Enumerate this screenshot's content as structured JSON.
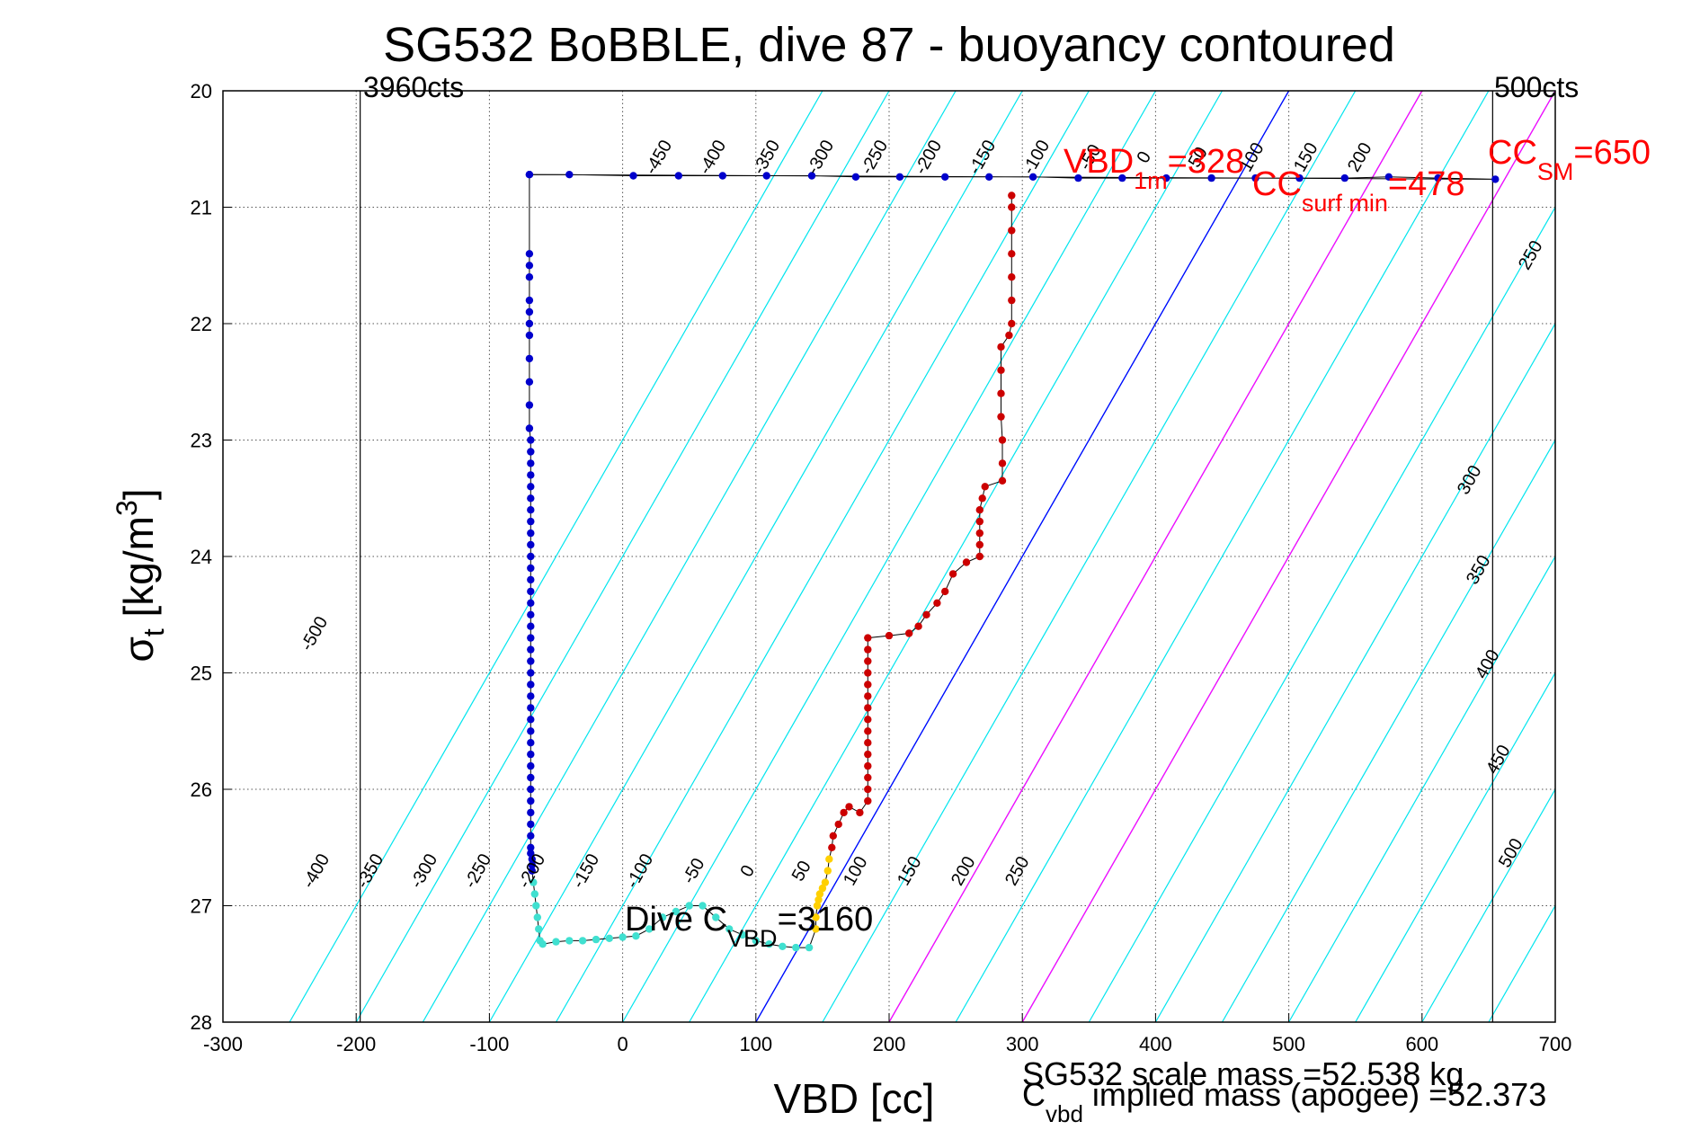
{
  "chart_data": {
    "type": "scatter",
    "title": "SG532 BoBBLE, dive 87 - buoyancy contoured",
    "xlabel": "VBD [cc]",
    "ylabel": "σ_t [kg/m³]",
    "ylabel_main": "σ",
    "ylabel_sub": "t",
    "ylabel_rest": " [kg/m",
    "ylabel_sup": "3",
    "ylabel_close": "]",
    "xlim": [
      -300,
      700
    ],
    "ylim": [
      20,
      28
    ],
    "y_reversed": true,
    "grid": true,
    "xticks": [
      "-300",
      "-200",
      "-100",
      "0",
      "100",
      "200",
      "300",
      "400",
      "500",
      "600",
      "700"
    ],
    "yticks": [
      "20",
      "21",
      "22",
      "23",
      "24",
      "25",
      "26",
      "27",
      "28"
    ],
    "vertical_lines": [
      {
        "x": -197,
        "label": "3960cts"
      },
      {
        "x": 653,
        "label": "500cts"
      }
    ],
    "contours": {
      "top_labels": [
        "-450",
        "-400",
        "-350",
        "-300",
        "-250",
        "-200",
        "-150",
        "-100",
        "-50",
        "0",
        "50",
        "100",
        "150",
        "200"
      ],
      "bottom_labels": [
        "-400",
        "-350",
        "-300",
        "-250",
        "-200",
        "-150",
        "-100",
        "-50",
        "0",
        "50",
        "100",
        "150",
        "200",
        "250"
      ],
      "left_labels": [
        "-500"
      ],
      "right_labels": [
        "250",
        "300",
        "350",
        "400",
        "450",
        "500"
      ]
    },
    "reference_lines": [
      {
        "name": "VBD_1m",
        "color": "#0000ff",
        "points": [
          [
            100,
            28
          ],
          [
            500,
            20
          ]
        ]
      },
      {
        "name": "CC_surf min",
        "color": "#ff00ff",
        "points": [
          [
            200,
            28
          ],
          [
            600,
            20
          ]
        ]
      },
      {
        "name": "CC_SM",
        "color": "#ff00ff",
        "points": [
          [
            300,
            28
          ],
          [
            700,
            20
          ]
        ]
      }
    ],
    "annotations": {
      "vbd1m": {
        "main": "VBD",
        "sub": "1m",
        "value": "=328"
      },
      "ccsurf": {
        "main": "CC",
        "sub": "surf min",
        "value": "=478"
      },
      "ccsm": {
        "main": "CC",
        "sub": "SM",
        "value": "=650"
      },
      "dive_c": {
        "main": "Dive C",
        "sub": "VBD",
        "value": "=3160"
      },
      "scale_mass": "SG532 scale mass =52.538 kg",
      "implied_mass": {
        "main": "C",
        "sub": "vbd",
        "rest": " implied mass (apogee) =52.373"
      }
    },
    "series": [
      {
        "segment": "surface-descent",
        "color": "#0000cc",
        "points": [
          [
            -70,
            20.72
          ],
          [
            -40,
            20.72
          ],
          [
            8,
            20.73
          ],
          [
            42,
            20.73
          ],
          [
            75,
            20.73
          ],
          [
            108,
            20.73
          ],
          [
            142,
            20.73
          ],
          [
            175,
            20.74
          ],
          [
            208,
            20.74
          ],
          [
            242,
            20.74
          ],
          [
            275,
            20.74
          ],
          [
            308,
            20.74
          ],
          [
            342,
            20.75
          ],
          [
            375,
            20.75
          ],
          [
            408,
            20.75
          ],
          [
            442,
            20.75
          ],
          [
            475,
            20.75
          ],
          [
            508,
            20.75
          ],
          [
            542,
            20.75
          ],
          [
            575,
            20.74
          ],
          [
            612,
            20.75
          ],
          [
            655,
            20.76
          ],
          [
            -70,
            20.72
          ],
          [
            -70,
            21.4
          ],
          [
            -70,
            21.5
          ],
          [
            -70,
            21.6
          ],
          [
            -70,
            21.8
          ],
          [
            -70,
            21.9
          ],
          [
            -70,
            22.0
          ],
          [
            -70,
            22.1
          ],
          [
            -70,
            22.3
          ],
          [
            -70,
            22.5
          ],
          [
            -70,
            22.7
          ],
          [
            -70,
            22.9
          ],
          [
            -69,
            23.0
          ],
          [
            -69,
            23.1
          ],
          [
            -69,
            23.2
          ],
          [
            -69,
            23.3
          ],
          [
            -69,
            23.4
          ],
          [
            -69,
            23.5
          ],
          [
            -69,
            23.6
          ],
          [
            -69,
            23.7
          ],
          [
            -69,
            23.8
          ],
          [
            -69,
            23.9
          ],
          [
            -69,
            24.0
          ],
          [
            -69,
            24.1
          ],
          [
            -69,
            24.2
          ],
          [
            -69,
            24.3
          ],
          [
            -69,
            24.4
          ],
          [
            -69,
            24.5
          ],
          [
            -69,
            24.6
          ],
          [
            -69,
            24.7
          ],
          [
            -69,
            24.8
          ],
          [
            -69,
            24.9
          ],
          [
            -69,
            25.0
          ],
          [
            -69,
            25.1
          ],
          [
            -69,
            25.2
          ],
          [
            -69,
            25.3
          ],
          [
            -69,
            25.4
          ],
          [
            -69,
            25.5
          ],
          [
            -69,
            25.6
          ],
          [
            -69,
            25.7
          ],
          [
            -69,
            25.8
          ],
          [
            -69,
            25.9
          ],
          [
            -69,
            26.0
          ],
          [
            -69,
            26.1
          ],
          [
            -69,
            26.2
          ],
          [
            -69,
            26.3
          ],
          [
            -69,
            26.4
          ],
          [
            -69,
            26.5
          ],
          [
            -69,
            26.55
          ],
          [
            -68,
            26.6
          ],
          [
            -68,
            26.65
          ],
          [
            -68,
            26.7
          ]
        ]
      },
      {
        "segment": "bottom",
        "color": "#40e0d0",
        "points": [
          [
            -67,
            26.8
          ],
          [
            -66,
            26.9
          ],
          [
            -65,
            27.0
          ],
          [
            -64,
            27.1
          ],
          [
            -63,
            27.2
          ],
          [
            -62,
            27.3
          ],
          [
            -60,
            27.33
          ],
          [
            -50,
            27.31
          ],
          [
            -40,
            27.3
          ],
          [
            -30,
            27.3
          ],
          [
            -20,
            27.29
          ],
          [
            -10,
            27.28
          ],
          [
            0,
            27.27
          ],
          [
            10,
            27.26
          ],
          [
            20,
            27.2
          ],
          [
            30,
            27.1
          ],
          [
            40,
            27.05
          ],
          [
            50,
            27.0
          ],
          [
            60,
            27.0
          ],
          [
            70,
            27.1
          ],
          [
            80,
            27.2
          ],
          [
            90,
            27.25
          ],
          [
            100,
            27.3
          ],
          [
            110,
            27.33
          ],
          [
            120,
            27.35
          ],
          [
            130,
            27.36
          ],
          [
            140,
            27.36
          ]
        ]
      },
      {
        "segment": "ascent-lower",
        "color": "#ffd000",
        "points": [
          [
            145,
            27.2
          ],
          [
            145,
            27.1
          ],
          [
            146,
            27.0
          ],
          [
            147,
            26.95
          ],
          [
            148,
            26.9
          ],
          [
            150,
            26.85
          ],
          [
            152,
            26.8
          ],
          [
            154,
            26.7
          ],
          [
            155,
            26.6
          ]
        ]
      },
      {
        "segment": "ascent-upper",
        "color": "#cc0000",
        "points": [
          [
            157,
            26.5
          ],
          [
            158,
            26.4
          ],
          [
            162,
            26.3
          ],
          [
            166,
            26.2
          ],
          [
            170,
            26.15
          ],
          [
            178,
            26.2
          ],
          [
            184,
            26.1
          ],
          [
            184,
            26.0
          ],
          [
            184,
            25.9
          ],
          [
            184,
            25.8
          ],
          [
            184,
            25.7
          ],
          [
            184,
            25.6
          ],
          [
            184,
            25.5
          ],
          [
            184,
            25.4
          ],
          [
            184,
            25.3
          ],
          [
            184,
            25.2
          ],
          [
            184,
            25.1
          ],
          [
            184,
            25.0
          ],
          [
            184,
            24.9
          ],
          [
            184,
            24.8
          ],
          [
            184,
            24.7
          ],
          [
            200,
            24.68
          ],
          [
            215,
            24.66
          ],
          [
            222,
            24.6
          ],
          [
            228,
            24.5
          ],
          [
            236,
            24.4
          ],
          [
            242,
            24.3
          ],
          [
            248,
            24.15
          ],
          [
            258,
            24.05
          ],
          [
            268,
            24.0
          ],
          [
            268,
            23.9
          ],
          [
            268,
            23.8
          ],
          [
            268,
            23.7
          ],
          [
            268,
            23.6
          ],
          [
            270,
            23.5
          ],
          [
            272,
            23.4
          ],
          [
            285,
            23.35
          ],
          [
            285,
            23.2
          ],
          [
            285,
            23.0
          ],
          [
            284,
            22.8
          ],
          [
            284,
            22.6
          ],
          [
            284,
            22.4
          ],
          [
            284,
            22.2
          ],
          [
            290,
            22.1
          ],
          [
            292,
            22.0
          ],
          [
            292,
            21.8
          ],
          [
            292,
            21.6
          ],
          [
            292,
            21.4
          ],
          [
            292,
            21.2
          ],
          [
            292,
            21.0
          ],
          [
            292,
            20.9
          ]
        ]
      }
    ]
  }
}
